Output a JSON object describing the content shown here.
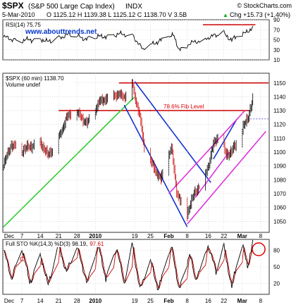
{
  "header": {
    "symbol": "$SPX",
    "name": "(S&P 500 Large Cap Index)",
    "exchange": "INDX",
    "copyright": "© StockCharts.com",
    "date": "5-Mar-2010",
    "ohlc": "O 1125.12 H 1139.38 L 1125.12 C 1138.70 V 3.5B",
    "change": "Chg +15.73 (+1.40%)",
    "change_marker": "▲"
  },
  "colors": {
    "up": "#000000",
    "down": "#cc0000",
    "trend_green": "#33cc33",
    "channel_blue": "#1133cc",
    "channel_magenta": "#dd33dd",
    "resistance_red": "#cc0000",
    "annotation_red": "#dd0000",
    "watermark_blue": "#0033cc",
    "sto_d_red": "#cc0000",
    "grid": "#c8c8c8"
  },
  "rsi_panel": {
    "label": "RSI(14) 75.75",
    "watermark": "www.abouttrends.net",
    "ylim": [
      10,
      90
    ],
    "ticks": [
      10,
      30,
      50,
      70,
      90
    ]
  },
  "price_panel": {
    "label": "$SPX (60 min) 1138.70",
    "volume_label": "Volume undef",
    "fib_label": "78.6% Fib Level",
    "ylim": [
      1042,
      1157
    ],
    "ticks": [
      1050,
      1060,
      1070,
      1080,
      1090,
      1100,
      1110,
      1120,
      1130,
      1140,
      1150
    ],
    "resistance_levels": [
      1150,
      1130
    ],
    "dotted_level": 1124
  },
  "sto_panel": {
    "label": "Full STO %K(14,3) %D(3) 98.19, 97.61",
    "label_k": "Full STO %K(14,3) %D(3) 98.19,",
    "label_d": "97.61",
    "ylim": [
      0,
      100
    ],
    "ticks": [
      20,
      50,
      80
    ],
    "marker": "C"
  },
  "x_axis": {
    "labels": [
      "Dec",
      "7",
      "14",
      "21",
      "28",
      "2010",
      "19",
      "25",
      "Feb",
      "8",
      "16",
      "22",
      "Mar",
      "8"
    ],
    "bold_labels": [
      "2010",
      "Feb",
      "Mar"
    ]
  },
  "chart_data": {
    "type": "candlestick",
    "title": "$SPX (60 min)",
    "price_anchors": [
      {
        "date": "2009-11-30",
        "close": 1090
      },
      {
        "date": "2009-12-03",
        "close": 1106
      },
      {
        "date": "2009-12-07",
        "close": 1101
      },
      {
        "date": "2009-12-10",
        "close": 1104
      },
      {
        "date": "2009-12-14",
        "close": 1108
      },
      {
        "date": "2009-12-17",
        "close": 1097
      },
      {
        "date": "2009-12-21",
        "close": 1110
      },
      {
        "date": "2009-12-24",
        "close": 1125
      },
      {
        "date": "2009-12-28",
        "close": 1128
      },
      {
        "date": "2010-01-01",
        "close": 1121
      },
      {
        "date": "2010-01-06",
        "close": 1137
      },
      {
        "date": "2010-01-11",
        "close": 1142
      },
      {
        "date": "2010-01-15",
        "close": 1140
      },
      {
        "date": "2010-01-18",
        "close": 1150
      },
      {
        "date": "2010-01-21",
        "close": 1125
      },
      {
        "date": "2010-01-23",
        "close": 1098
      },
      {
        "date": "2010-01-26",
        "close": 1090
      },
      {
        "date": "2010-01-29",
        "close": 1080
      },
      {
        "date": "2010-02-02",
        "close": 1103
      },
      {
        "date": "2010-02-04",
        "close": 1072
      },
      {
        "date": "2010-02-06",
        "close": 1062
      },
      {
        "date": "2010-02-08",
        "close": 1056
      },
      {
        "date": "2010-02-11",
        "close": 1071
      },
      {
        "date": "2010-02-13",
        "close": 1077
      },
      {
        "date": "2010-02-16",
        "close": 1090
      },
      {
        "date": "2010-02-18",
        "close": 1105
      },
      {
        "date": "2010-02-20",
        "close": 1112
      },
      {
        "date": "2010-02-23",
        "close": 1098
      },
      {
        "date": "2010-02-25",
        "close": 1101
      },
      {
        "date": "2010-02-27",
        "close": 1106
      },
      {
        "date": "2010-03-01",
        "close": 1116
      },
      {
        "date": "2010-03-03",
        "close": 1124
      },
      {
        "date": "2010-03-05",
        "close": 1139
      }
    ],
    "trendlines": [
      {
        "name": "green uptrend",
        "color": "green",
        "from": {
          "date": "2009-11-30",
          "price": 1046
        },
        "to": {
          "date": "2010-01-19",
          "price": 1140
        }
      },
      {
        "name": "blue channel upper",
        "color": "blue",
        "from": {
          "date": "2010-01-19",
          "price": 1151
        },
        "to": {
          "date": "2010-02-17",
          "price": 1078
        }
      },
      {
        "name": "blue channel lower",
        "color": "blue",
        "from": {
          "date": "2010-01-15",
          "price": 1134
        },
        "to": {
          "date": "2010-02-08",
          "price": 1046
        }
      },
      {
        "name": "blue channel upper (rising)",
        "color": "blue",
        "from": {
          "date": "2010-02-18",
          "price": 1095
        },
        "to": {
          "date": "2010-02-27",
          "price": 1124
        }
      },
      {
        "name": "magenta channel upper",
        "color": "magenta",
        "from": {
          "date": "2010-02-01",
          "price": 1070
        },
        "to": {
          "date": "2010-03-02",
          "price": 1130
        }
      },
      {
        "name": "magenta channel lower",
        "color": "magenta",
        "from": {
          "date": "2010-02-08",
          "price": 1048
        },
        "to": {
          "date": "2010-03-10",
          "price": 1115
        }
      },
      {
        "name": "magenta mid",
        "color": "magenta",
        "from": {
          "date": "2010-02-11",
          "price": 1067
        },
        "to": {
          "date": "2010-02-24",
          "price": 1100
        }
      }
    ],
    "rsi_anchors": [
      {
        "date": "2009-11-30",
        "value": 55
      },
      {
        "date": "2009-12-07",
        "value": 48
      },
      {
        "date": "2009-12-14",
        "value": 53
      },
      {
        "date": "2009-12-17",
        "value": 45
      },
      {
        "date": "2009-12-24",
        "value": 60
      },
      {
        "date": "2010-01-01",
        "value": 52
      },
      {
        "date": "2010-01-11",
        "value": 60
      },
      {
        "date": "2010-01-18",
        "value": 62
      },
      {
        "date": "2010-01-22",
        "value": 30
      },
      {
        "date": "2010-01-27",
        "value": 45
      },
      {
        "date": "2010-02-03",
        "value": 58
      },
      {
        "date": "2010-02-05",
        "value": 30
      },
      {
        "date": "2010-02-08",
        "value": 40
      },
      {
        "date": "2010-02-16",
        "value": 55
      },
      {
        "date": "2010-02-22",
        "value": 62
      },
      {
        "date": "2010-02-25",
        "value": 50
      },
      {
        "date": "2010-03-02",
        "value": 62
      },
      {
        "date": "2010-03-05",
        "value": 76
      }
    ],
    "sto_anchors": [
      {
        "date": "2009-11-30",
        "value": 80
      },
      {
        "date": "2009-12-03",
        "value": 30
      },
      {
        "date": "2009-12-07",
        "value": 85
      },
      {
        "date": "2009-12-10",
        "value": 20
      },
      {
        "date": "2009-12-14",
        "value": 75
      },
      {
        "date": "2009-12-17",
        "value": 15
      },
      {
        "date": "2009-12-21",
        "value": 90
      },
      {
        "date": "2009-12-24",
        "value": 40
      },
      {
        "date": "2009-12-28",
        "value": 85
      },
      {
        "date": "2010-01-01",
        "value": 20
      },
      {
        "date": "2010-01-05",
        "value": 90
      },
      {
        "date": "2010-01-08",
        "value": 30
      },
      {
        "date": "2010-01-12",
        "value": 85
      },
      {
        "date": "2010-01-15",
        "value": 20
      },
      {
        "date": "2010-01-18",
        "value": 95
      },
      {
        "date": "2010-01-21",
        "value": 8
      },
      {
        "date": "2010-01-25",
        "value": 60
      },
      {
        "date": "2010-01-28",
        "value": 10
      },
      {
        "date": "2010-02-02",
        "value": 85
      },
      {
        "date": "2010-02-05",
        "value": 10
      },
      {
        "date": "2010-02-09",
        "value": 75
      },
      {
        "date": "2010-02-11",
        "value": 25
      },
      {
        "date": "2010-02-16",
        "value": 90
      },
      {
        "date": "2010-02-19",
        "value": 40
      },
      {
        "date": "2010-02-22",
        "value": 85
      },
      {
        "date": "2010-02-25",
        "value": 15
      },
      {
        "date": "2010-03-01",
        "value": 90
      },
      {
        "date": "2010-03-03",
        "value": 50
      },
      {
        "date": "2010-03-05",
        "value": 98
      }
    ],
    "sto_d_final": 97.61
  }
}
